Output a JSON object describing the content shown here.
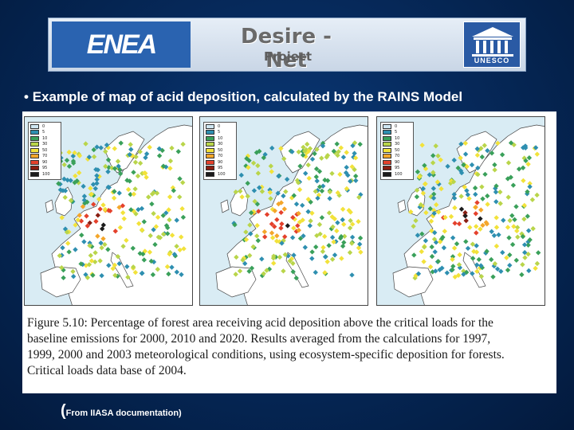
{
  "banner": {
    "left_logo": "ENEA",
    "title": "Desire - Net",
    "subtitle": "Project",
    "right_logo": "UNESCO"
  },
  "bullet": {
    "marker": "•",
    "text": "Example of map of acid deposition, calculated by the RAINS Model"
  },
  "figure": {
    "legend": [
      {
        "label": "0",
        "color": "#cfe6f2"
      },
      {
        "label": "5",
        "color": "#2e8fb0"
      },
      {
        "label": "10",
        "color": "#3aa05a"
      },
      {
        "label": "30",
        "color": "#b9d54a"
      },
      {
        "label": "50",
        "color": "#f2e23a"
      },
      {
        "label": "70",
        "color": "#f4a62a"
      },
      {
        "label": "90",
        "color": "#e4412c"
      },
      {
        "label": "95",
        "color": "#8a1e12"
      },
      {
        "label": "100",
        "color": "#1c1c1c"
      }
    ],
    "caption_lines": [
      "Figure 5.10: Percentage of forest area receiving acid deposition above the critical loads for the",
      "baseline emissions for 2000, 2010 and 2020. Results averaged from the calculations for 1997,",
      "1999, 2000 and 2003 meteorological conditions, using ecosystem-specific deposition for forests.",
      "Critical loads data base of 2004."
    ]
  },
  "source": {
    "open": "(",
    "text": "From IIASA documentation",
    "close": ")"
  },
  "colors": {
    "background": "#062a5c",
    "banner_blue": "#2a63b0",
    "sea": "#d9ecf4",
    "land": "#ffffff"
  }
}
